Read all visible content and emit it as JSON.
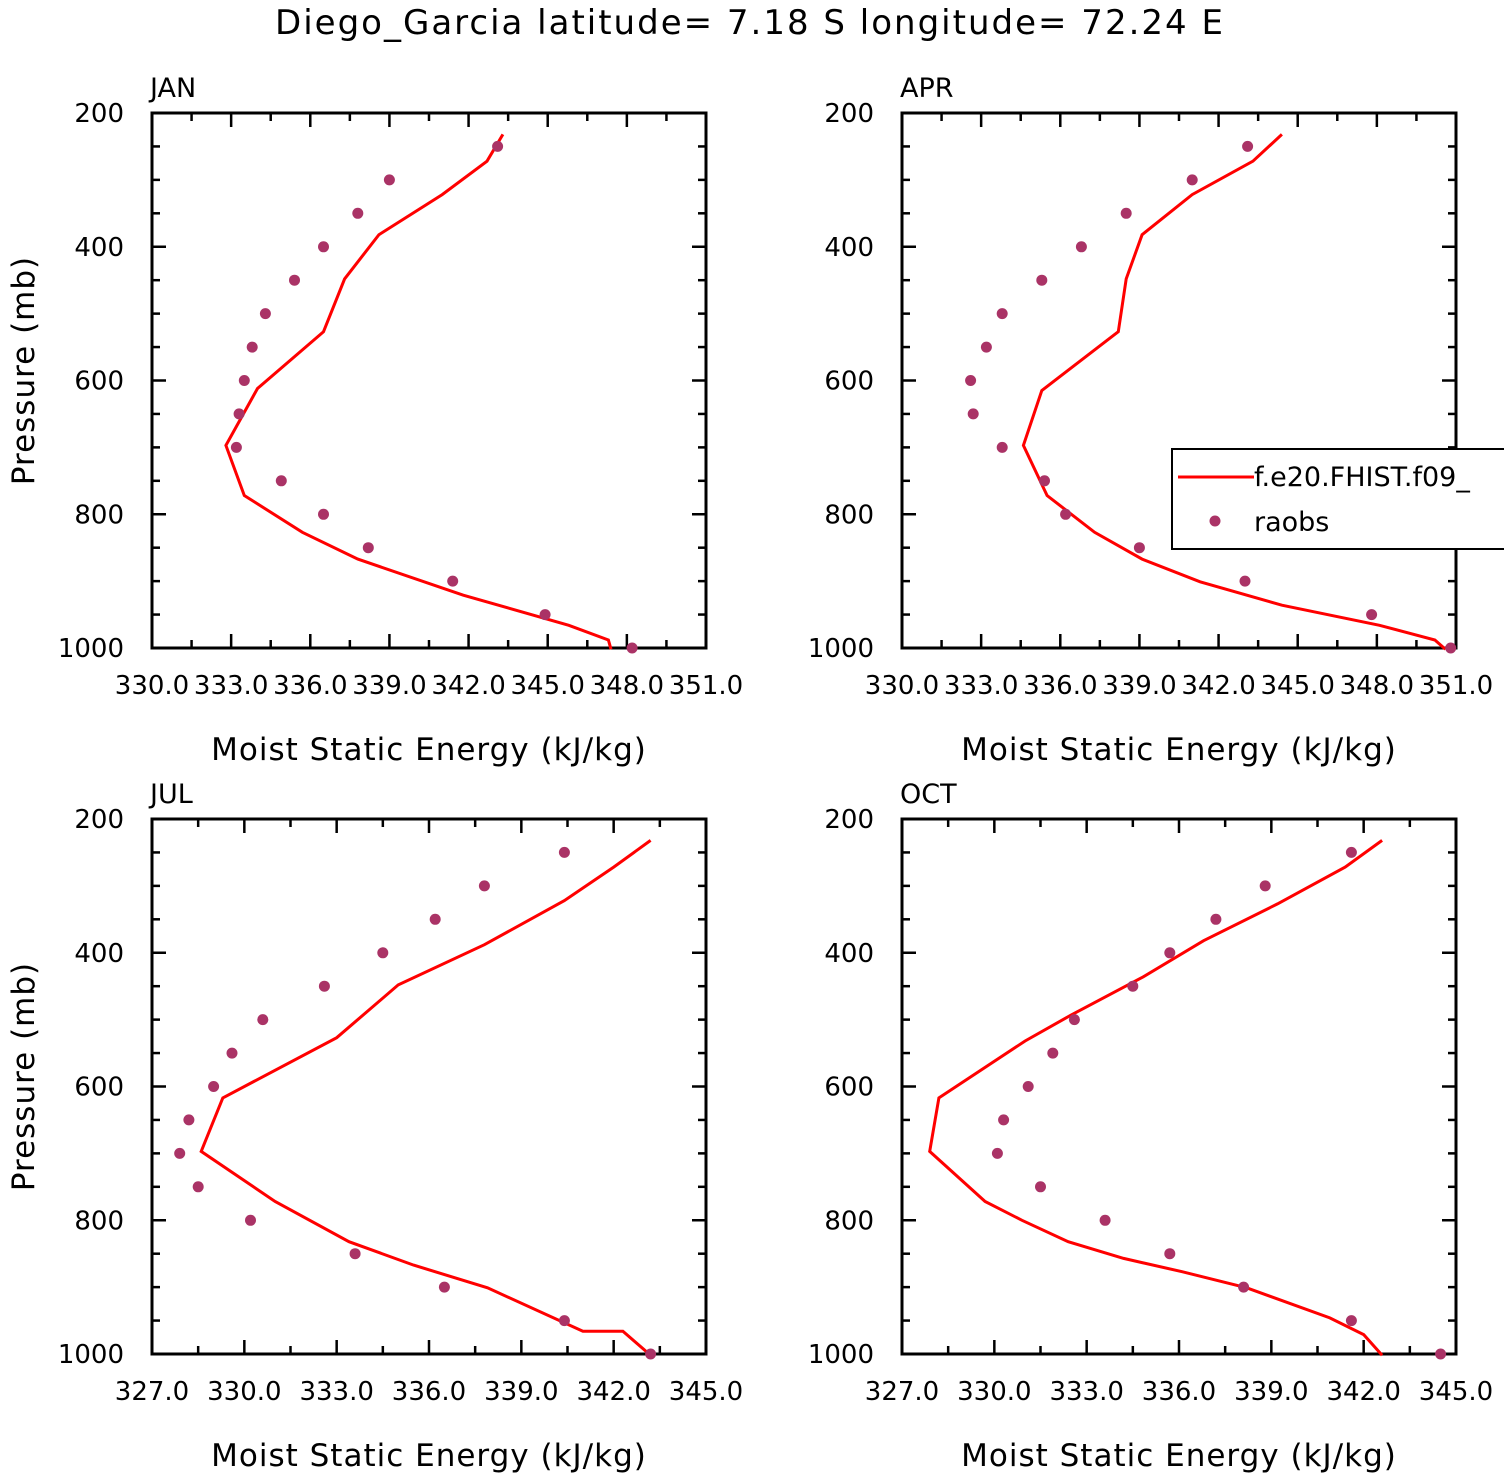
{
  "title": "Diego_Garcia  latitude= 7.18 S longitude= 72.24 E",
  "colors": {
    "model": "#ff0000",
    "obs": "#aa3366",
    "axes": "#000000",
    "background": "#ffffff"
  },
  "legend": {
    "placement": "right",
    "entries": [
      "f.e20.FHIST.f09_",
      "raobs"
    ]
  },
  "chart_data": [
    {
      "type": "line",
      "panel_title": "JAN",
      "xlabel": "Moist Static Energy (kJ/kg)",
      "ylabel": "Pressure (mb)",
      "xlim": [
        330.0,
        351.0
      ],
      "ylim": [
        200,
        1000
      ],
      "y_inverted": true,
      "grid": false,
      "x_tick_labels": [
        "330.0",
        "333.0",
        "336.0",
        "339.0",
        "342.0",
        "345.0",
        "348.0",
        "351.0"
      ],
      "x_tick_values": [
        330,
        333,
        336,
        339,
        342,
        345,
        348,
        351
      ],
      "y_tick_labels": [
        "200",
        "400",
        "600",
        "800",
        "1000"
      ],
      "y_tick_values": [
        200,
        400,
        600,
        800,
        1000
      ],
      "series": [
        {
          "name": "f.e20.FHIST.f09_",
          "kind": "line",
          "x": [
            343.3,
            342.7,
            341.0,
            338.6,
            337.3,
            336.5,
            334.0,
            332.8,
            333.5,
            335.7,
            337.8,
            341.8,
            345.8,
            347.3,
            347.4
          ],
          "y": [
            232,
            272,
            322,
            382,
            448,
            527,
            612,
            697,
            772,
            827,
            867,
            921,
            966,
            988,
            1002
          ]
        },
        {
          "name": "raobs",
          "kind": "scatter",
          "x": [
            343.1,
            339.0,
            337.8,
            336.5,
            335.4,
            334.3,
            333.8,
            333.5,
            333.3,
            333.2,
            334.9,
            336.5,
            338.2,
            341.4,
            344.9,
            348.2
          ],
          "y": [
            250,
            300,
            350,
            400,
            450,
            500,
            550,
            600,
            650,
            700,
            750,
            800,
            850,
            900,
            950,
            1000
          ]
        }
      ]
    },
    {
      "type": "line",
      "panel_title": "APR",
      "xlabel": "Moist Static Energy (kJ/kg)",
      "ylabel": "",
      "xlim": [
        330.0,
        351.0
      ],
      "ylim": [
        200,
        1000
      ],
      "y_inverted": true,
      "grid": false,
      "x_tick_labels": [
        "330.0",
        "333.0",
        "336.0",
        "339.0",
        "342.0",
        "345.0",
        "348.0",
        "351.0"
      ],
      "x_tick_values": [
        330,
        333,
        336,
        339,
        342,
        345,
        348,
        351
      ],
      "y_tick_labels": [
        "200",
        "400",
        "600",
        "800",
        "1000"
      ],
      "y_tick_values": [
        200,
        400,
        600,
        800,
        1000
      ],
      "series": [
        {
          "name": "f.e20.FHIST.f09_",
          "kind": "line",
          "x": [
            344.4,
            343.3,
            341.0,
            339.1,
            338.5,
            338.2,
            335.3,
            334.6,
            335.5,
            337.3,
            339.1,
            341.3,
            344.4,
            348.1,
            350.2,
            350.6
          ],
          "y": [
            232,
            272,
            322,
            382,
            448,
            527,
            615,
            697,
            772,
            827,
            867,
            901,
            936,
            966,
            988,
            1002
          ]
        },
        {
          "name": "raobs",
          "kind": "scatter",
          "x": [
            343.1,
            341.0,
            338.5,
            336.8,
            335.3,
            333.8,
            333.2,
            332.6,
            332.7,
            333.8,
            335.4,
            336.2,
            339.0,
            343.0,
            347.8,
            350.8
          ],
          "y": [
            250,
            300,
            350,
            400,
            450,
            500,
            550,
            600,
            650,
            700,
            750,
            800,
            850,
            900,
            950,
            1000
          ]
        }
      ]
    },
    {
      "type": "line",
      "panel_title": "JUL",
      "xlabel": "Moist Static Energy (kJ/kg)",
      "ylabel": "Pressure (mb)",
      "xlim": [
        327.0,
        345.0
      ],
      "ylim": [
        200,
        1000
      ],
      "y_inverted": true,
      "grid": false,
      "x_tick_labels": [
        "327.0",
        "330.0",
        "333.0",
        "336.0",
        "339.0",
        "342.0",
        "345.0"
      ],
      "x_tick_values": [
        327,
        330,
        333,
        336,
        339,
        342,
        345
      ],
      "y_tick_labels": [
        "200",
        "400",
        "600",
        "800",
        "1000"
      ],
      "y_tick_values": [
        200,
        400,
        600,
        800,
        1000
      ],
      "series": [
        {
          "name": "f.e20.FHIST.f09_",
          "kind": "line",
          "x": [
            343.2,
            342.0,
            340.4,
            337.8,
            335.0,
            333.0,
            329.3,
            328.6,
            331.0,
            333.4,
            335.5,
            337.9,
            341.0,
            342.3,
            343.2
          ],
          "y": [
            232,
            272,
            322,
            388,
            448,
            527,
            617,
            697,
            772,
            832,
            867,
            901,
            966,
            966,
            1002
          ]
        },
        {
          "name": "raobs",
          "kind": "scatter",
          "x": [
            340.4,
            337.8,
            336.2,
            334.5,
            332.6,
            330.6,
            329.6,
            329.0,
            328.2,
            327.9,
            328.5,
            330.2,
            333.6,
            336.5,
            340.4,
            343.2
          ],
          "y": [
            250,
            300,
            350,
            400,
            450,
            500,
            550,
            600,
            650,
            700,
            750,
            800,
            850,
            900,
            950,
            1000
          ]
        }
      ]
    },
    {
      "type": "line",
      "panel_title": "OCT",
      "xlabel": "Moist Static Energy (kJ/kg)",
      "ylabel": "",
      "xlim": [
        327.0,
        345.0
      ],
      "ylim": [
        200,
        1000
      ],
      "y_inverted": true,
      "grid": false,
      "x_tick_labels": [
        "327.0",
        "330.0",
        "333.0",
        "336.0",
        "339.0",
        "342.0",
        "345.0"
      ],
      "x_tick_values": [
        327,
        330,
        333,
        336,
        339,
        342,
        345
      ],
      "y_tick_labels": [
        "200",
        "400",
        "600",
        "800",
        "1000"
      ],
      "y_tick_values": [
        200,
        400,
        600,
        800,
        1000
      ],
      "series": [
        {
          "name": "f.e20.FHIST.f09_",
          "kind": "line",
          "x": [
            342.6,
            341.4,
            339.2,
            336.8,
            334.8,
            332.5,
            331.0,
            328.2,
            327.9,
            329.7,
            330.9,
            332.4,
            334.2,
            336.1,
            338.2,
            340.9,
            342.0,
            342.6
          ],
          "y": [
            232,
            272,
            327,
            382,
            437,
            493,
            532,
            617,
            697,
            772,
            800,
            832,
            857,
            877,
            901,
            946,
            971,
            1002
          ]
        },
        {
          "name": "raobs",
          "kind": "scatter",
          "x": [
            341.6,
            338.8,
            337.2,
            335.7,
            334.5,
            332.6,
            331.9,
            331.1,
            330.3,
            330.1,
            331.5,
            333.6,
            335.7,
            338.1,
            341.6,
            344.5
          ],
          "y": [
            250,
            300,
            350,
            400,
            450,
            500,
            550,
            600,
            650,
            700,
            750,
            800,
            850,
            900,
            950,
            1000
          ]
        }
      ]
    }
  ]
}
